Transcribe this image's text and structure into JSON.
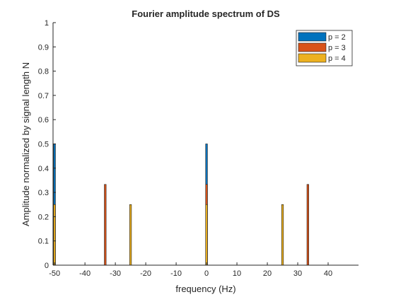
{
  "chart_data": {
    "type": "bar",
    "title": "Fourier amplitude spectrum of DS",
    "xlabel": "frequency (Hz)",
    "ylabel": "Amplitude normalized by signal length N",
    "xlim": [
      -50.5,
      50
    ],
    "ylim": [
      0,
      1
    ],
    "xticks": [
      -50,
      -40,
      -30,
      -20,
      -10,
      0,
      10,
      20,
      30,
      40
    ],
    "yticks": [
      0,
      0.1,
      0.2,
      0.3,
      0.4,
      0.5,
      0.6,
      0.7,
      0.8,
      0.9,
      1
    ],
    "grid": false,
    "legend_position": "top-right",
    "bar_width": 0.6,
    "series": [
      {
        "name": "p = 2",
        "color": "#0072BD",
        "x": [
          -50,
          0
        ],
        "values": [
          0.5,
          0.5
        ]
      },
      {
        "name": "p = 3",
        "color": "#D95319",
        "x": [
          -33.33,
          0,
          33.33
        ],
        "values": [
          0.333,
          0.333,
          0.333
        ]
      },
      {
        "name": "p = 4",
        "color": "#EDB120",
        "x": [
          -50,
          -25,
          0,
          25
        ],
        "values": [
          0.25,
          0.25,
          0.25,
          0.25
        ]
      }
    ]
  }
}
